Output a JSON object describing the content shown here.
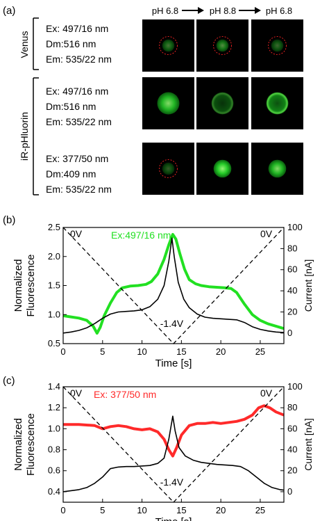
{
  "panel_a": {
    "label": "(a)",
    "ph_header": [
      "pH 6.8",
      "pH 8.8",
      "pH 6.8"
    ],
    "groups": [
      {
        "name": "Venus",
        "lines": [
          "Ex: 497/16 nm",
          "Dm:516 nm",
          "Em: 535/22 nm"
        ]
      },
      {
        "name": "iR-pHluorin",
        "lines": [
          "Ex: 497/16 nm",
          "Dm:516 nm",
          "Em: 535/22 nm"
        ]
      },
      {
        "name": "",
        "lines": [
          "Ex: 377/50 nm",
          "Dm:409 nm",
          "Em: 535/22 nm"
        ]
      }
    ],
    "cells": [
      [
        {
          "intensity": 0.45,
          "ring": false,
          "dashed": true,
          "size": 0.55
        },
        {
          "intensity": 0.55,
          "ring": false,
          "dashed": true,
          "size": 0.55
        },
        {
          "intensity": 0.4,
          "ring": false,
          "dashed": true,
          "size": 0.55
        }
      ],
      [
        {
          "intensity": 0.85,
          "ring": false,
          "dashed": false,
          "size": 1.0
        },
        {
          "intensity": 0.55,
          "ring": true,
          "dashed": false,
          "size": 1.0
        },
        {
          "intensity": 0.9,
          "ring": true,
          "dashed": false,
          "size": 1.0
        }
      ],
      [
        {
          "intensity": 0.35,
          "ring": false,
          "dashed": true,
          "size": 0.55
        },
        {
          "intensity": 0.95,
          "ring": false,
          "dashed": false,
          "size": 0.8
        },
        {
          "intensity": 0.85,
          "ring": false,
          "dashed": false,
          "size": 0.8
        }
      ]
    ],
    "colors": {
      "green": "#27d62a",
      "dashed_ring": "#e02020",
      "background": "#000000"
    }
  },
  "chart_data": [
    {
      "panel_label": "(b)",
      "type": "line",
      "annotation": "Ex:497/16 nm",
      "annotation_color": "#22e022",
      "xlabel": "Time [s]",
      "ylabel_left": [
        "Normalized",
        "Fluorescence"
      ],
      "ylabel_right": "Current [nA]",
      "xlim": [
        0,
        28
      ],
      "ylim": [
        0.5,
        2.5
      ],
      "y2lim": [
        -10,
        100
      ],
      "x_ticks": [
        "0",
        "5",
        "10",
        "15",
        "20",
        "25"
      ],
      "y_ticks": [
        "0.5",
        "1.0",
        "1.5",
        "2.0",
        "2.5"
      ],
      "y2_ticks": [
        "0",
        "20",
        "40",
        "60",
        "80",
        "100"
      ],
      "voltage_labels": {
        "start": "0V",
        "min": "-1.4V",
        "end": "0V"
      },
      "voltage_y2": [
        [
          0,
          100
        ],
        [
          14,
          -10
        ],
        [
          28,
          100
        ]
      ],
      "fluorescence": {
        "color": "#22e022",
        "points": [
          [
            0,
            0.98
          ],
          [
            1,
            0.96
          ],
          [
            2,
            0.94
          ],
          [
            3,
            0.9
          ],
          [
            3.8,
            0.8
          ],
          [
            4.3,
            0.68
          ],
          [
            4.7,
            0.78
          ],
          [
            5.2,
            0.98
          ],
          [
            6,
            1.2
          ],
          [
            6.8,
            1.38
          ],
          [
            7.5,
            1.46
          ],
          [
            8.5,
            1.49
          ],
          [
            9.5,
            1.5
          ],
          [
            10.5,
            1.52
          ],
          [
            11.2,
            1.57
          ],
          [
            12,
            1.7
          ],
          [
            12.8,
            1.95
          ],
          [
            13.4,
            2.2
          ],
          [
            13.9,
            2.38
          ],
          [
            14.3,
            2.3
          ],
          [
            14.8,
            2.05
          ],
          [
            15.4,
            1.78
          ],
          [
            16,
            1.6
          ],
          [
            16.8,
            1.53
          ],
          [
            17.5,
            1.5
          ],
          [
            18.5,
            1.48
          ],
          [
            19.5,
            1.47
          ],
          [
            20.5,
            1.46
          ],
          [
            21.3,
            1.45
          ],
          [
            22,
            1.38
          ],
          [
            23,
            1.18
          ],
          [
            24,
            1.0
          ],
          [
            25,
            0.9
          ],
          [
            26,
            0.84
          ],
          [
            27,
            0.8
          ],
          [
            28,
            0.76
          ]
        ]
      },
      "current": {
        "color": "#000000",
        "points": [
          [
            0,
            0
          ],
          [
            1,
            1
          ],
          [
            2,
            2.5
          ],
          [
            3,
            5
          ],
          [
            4,
            9
          ],
          [
            5,
            14
          ],
          [
            6,
            18
          ],
          [
            7,
            20
          ],
          [
            8,
            20.5
          ],
          [
            9,
            21
          ],
          [
            10,
            22
          ],
          [
            11,
            25
          ],
          [
            12,
            32
          ],
          [
            12.8,
            45
          ],
          [
            13.4,
            68
          ],
          [
            13.8,
            90
          ],
          [
            14.1,
            72
          ],
          [
            14.6,
            48
          ],
          [
            15.3,
            32
          ],
          [
            16,
            24
          ],
          [
            17,
            18
          ],
          [
            18,
            15
          ],
          [
            19,
            14
          ],
          [
            20,
            13.5
          ],
          [
            21,
            13
          ],
          [
            22,
            12.5
          ],
          [
            23,
            10
          ],
          [
            24,
            6
          ],
          [
            25,
            3.5
          ],
          [
            26,
            2
          ],
          [
            27,
            1
          ],
          [
            28,
            0.5
          ]
        ]
      }
    },
    {
      "panel_label": "(c)",
      "type": "line",
      "annotation": "Ex: 377/50 nm",
      "annotation_color": "#ff2a2a",
      "xlabel": "Time [s]",
      "ylabel_left": [
        "Normalized",
        "Fluorescence"
      ],
      "ylabel_right": "Current [nA]",
      "xlim": [
        0,
        28
      ],
      "ylim": [
        0.3,
        1.4
      ],
      "y2lim": [
        -10,
        100
      ],
      "x_ticks": [
        "0",
        "5",
        "10",
        "15",
        "20",
        "25"
      ],
      "y_ticks": [
        "0.4",
        "0.6",
        "0.8",
        "1.0",
        "1.2",
        "1.4"
      ],
      "y2_ticks": [
        "0",
        "20",
        "40",
        "60",
        "80",
        "100"
      ],
      "voltage_labels": {
        "start": "0V",
        "min": "-1.4V",
        "end": "0V"
      },
      "voltage_y2": [
        [
          0,
          100
        ],
        [
          14,
          -10
        ],
        [
          28,
          100
        ]
      ],
      "fluorescence": {
        "color": "#ff2a2a",
        "points": [
          [
            0,
            1.04
          ],
          [
            2,
            1.04
          ],
          [
            4,
            1.03
          ],
          [
            5,
            1.0
          ],
          [
            6,
            1.02
          ],
          [
            7,
            1.03
          ],
          [
            8,
            1.02
          ],
          [
            9,
            1.0
          ],
          [
            10,
            0.99
          ],
          [
            11,
            1.0
          ],
          [
            12,
            0.97
          ],
          [
            12.8,
            0.9
          ],
          [
            13.4,
            0.8
          ],
          [
            13.9,
            0.74
          ],
          [
            14.4,
            0.82
          ],
          [
            15,
            0.94
          ],
          [
            16,
            1.03
          ],
          [
            17,
            1.05
          ],
          [
            18,
            1.05
          ],
          [
            19,
            1.06
          ],
          [
            20,
            1.05
          ],
          [
            21,
            1.06
          ],
          [
            22,
            1.07
          ],
          [
            23,
            1.09
          ],
          [
            24,
            1.13
          ],
          [
            24.8,
            1.2
          ],
          [
            25.5,
            1.22
          ],
          [
            26.2,
            1.2
          ],
          [
            27,
            1.16
          ],
          [
            28,
            1.13
          ]
        ]
      },
      "current": {
        "color": "#000000",
        "points": [
          [
            0,
            0
          ],
          [
            1,
            1
          ],
          [
            2,
            2
          ],
          [
            3,
            4
          ],
          [
            4,
            8
          ],
          [
            5,
            14
          ],
          [
            6,
            22
          ],
          [
            7,
            23.5
          ],
          [
            8,
            24
          ],
          [
            9,
            24
          ],
          [
            10,
            24.5
          ],
          [
            11,
            25
          ],
          [
            12,
            27
          ],
          [
            12.8,
            32
          ],
          [
            13.4,
            50
          ],
          [
            13.9,
            72
          ],
          [
            14.2,
            58
          ],
          [
            14.7,
            42
          ],
          [
            15.5,
            34
          ],
          [
            16.5,
            30
          ],
          [
            17.5,
            28
          ],
          [
            18.5,
            27
          ],
          [
            19.5,
            26
          ],
          [
            20.5,
            25.5
          ],
          [
            21.5,
            25
          ],
          [
            22.5,
            24
          ],
          [
            23.5,
            20
          ],
          [
            24.5,
            14
          ],
          [
            25.5,
            8
          ],
          [
            26.5,
            4
          ],
          [
            27.5,
            2
          ],
          [
            28,
            1.5
          ]
        ]
      }
    }
  ]
}
